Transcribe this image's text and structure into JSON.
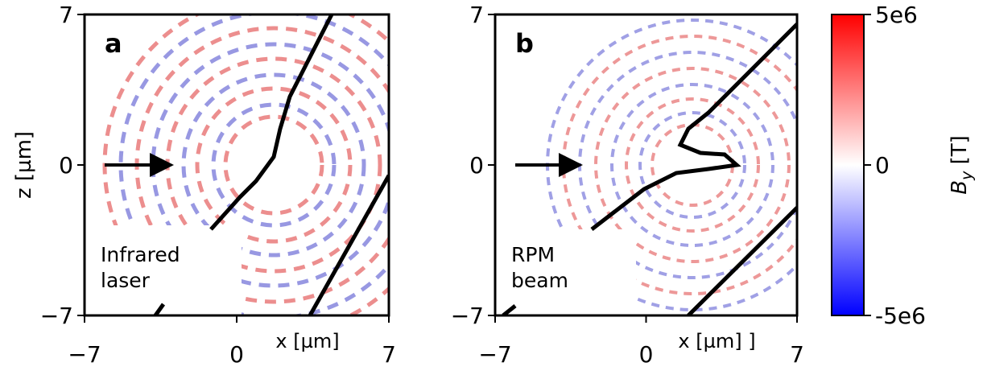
{
  "chart_data": [
    {
      "type": "heatmap",
      "panel_label": "a",
      "annotation": [
        "Infrared",
        "laser"
      ],
      "xlabel": "x [µm]",
      "ylabel": "z [µm]",
      "xlim": [
        -7,
        7
      ],
      "ylim": [
        -7,
        7
      ],
      "xticks": [
        {
          "value": -7,
          "label": "−7"
        },
        0,
        7
      ],
      "yticks": [
        {
          "value": -7,
          "label": "−7"
        },
        0,
        7
      ]
    },
    {
      "type": "heatmap",
      "panel_label": "b",
      "annotation": [
        "RPM",
        "beam"
      ],
      "xlabel": "x [µm] ]",
      "xlim": [
        -7,
        7
      ],
      "ylim": [
        -7,
        7
      ],
      "xticks": [
        {
          "value": -7,
          "label": "−7"
        },
        0,
        7
      ],
      "yticks": [
        {
          "value": -7,
          "label": "−7"
        },
        0,
        7
      ]
    }
  ],
  "colorbar": {
    "symbol": "B",
    "subscript": "y",
    "unit": "[T]",
    "lim": [
      -5000000,
      5000000
    ],
    "ticks": [
      {
        "value": -5000000,
        "label": "-5e6"
      },
      0,
      {
        "value": 5000000,
        "label": "5e6"
      }
    ]
  }
}
